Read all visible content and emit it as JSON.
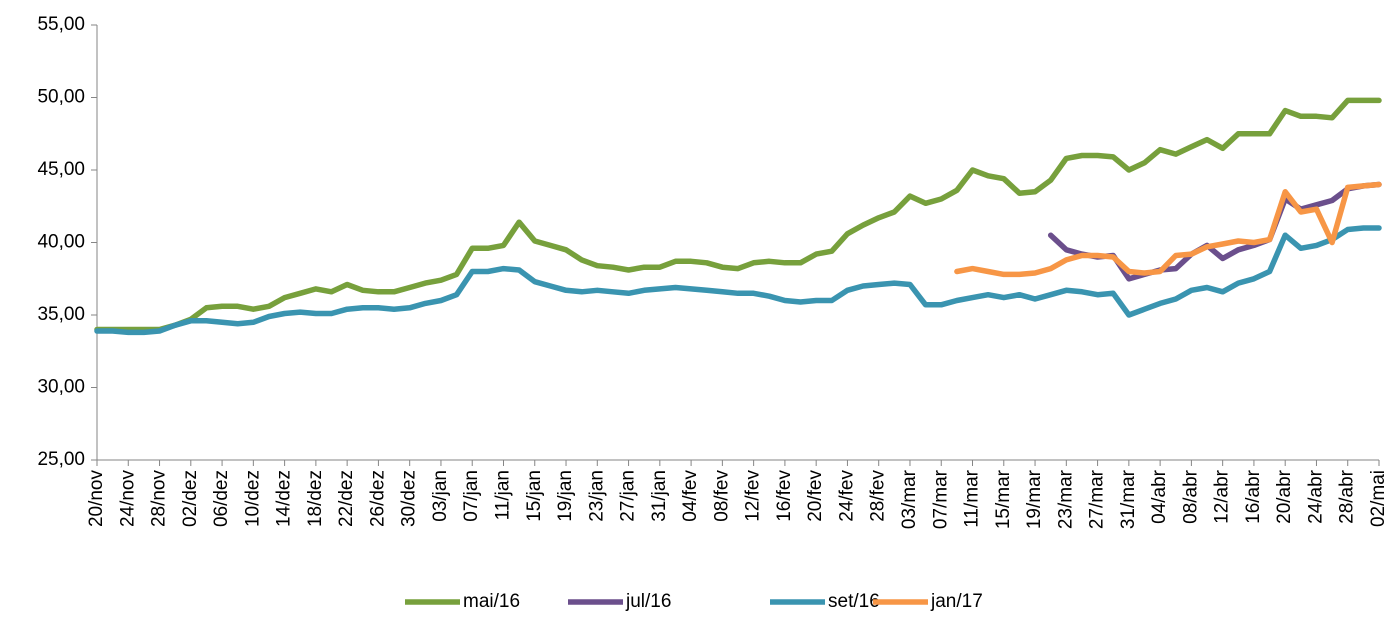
{
  "chart_data": {
    "type": "line",
    "categories": [
      "20/nov",
      null,
      "24/nov",
      null,
      "28/nov",
      null,
      "02/dez",
      null,
      "06/dez",
      null,
      "10/dez",
      null,
      "14/dez",
      null,
      "18/dez",
      null,
      "22/dez",
      null,
      "26/dez",
      null,
      "30/dez",
      null,
      "03/jan",
      null,
      "07/jan",
      null,
      "11/jan",
      null,
      "15/jan",
      null,
      "19/jan",
      null,
      "23/jan",
      null,
      "27/jan",
      null,
      "31/jan",
      null,
      "04/fev",
      null,
      "08/fev",
      null,
      "12/fev",
      null,
      "16/fev",
      null,
      "20/fev",
      null,
      "24/fev",
      null,
      "28/fev",
      null,
      "03/mar",
      null,
      "07/mar",
      null,
      "11/mar",
      null,
      "15/mar",
      null,
      "19/mar",
      null,
      "23/mar",
      null,
      "27/mar",
      null,
      "31/mar",
      null,
      "04/abr",
      null,
      "08/abr",
      null,
      "12/abr",
      null,
      "16/abr",
      null,
      "20/abr",
      null,
      "24/abr",
      null,
      "28/abr",
      null,
      "02/mai"
    ],
    "series": [
      {
        "name": "mai/16",
        "color": "#77a03c",
        "values": [
          34,
          34,
          34,
          34,
          34,
          34.3,
          34.7,
          35.5,
          35.6,
          35.6,
          35.4,
          35.6,
          36.2,
          36.5,
          36.8,
          36.6,
          37.1,
          36.7,
          36.6,
          36.6,
          36.9,
          37.2,
          37.4,
          37.8,
          39.6,
          39.6,
          39.8,
          41.4,
          40.1,
          39.8,
          39.5,
          38.8,
          38.4,
          38.3,
          38.1,
          38.3,
          38.3,
          38.7,
          38.7,
          38.6,
          38.3,
          38.2,
          38.6,
          38.7,
          38.6,
          38.6,
          39.2,
          39.4,
          40.6,
          41.2,
          41.7,
          42.1,
          43.2,
          42.7,
          43.0,
          43.6,
          45.0,
          44.6,
          44.4,
          43.4,
          43.5,
          44.3,
          45.8,
          46.0,
          46.0,
          45.9,
          45.0,
          45.5,
          46.4,
          46.1,
          46.6,
          47.1,
          46.5,
          47.5,
          47.5,
          47.5,
          49.1,
          48.7,
          48.7,
          48.6,
          49.8,
          49.8,
          49.8
        ]
      },
      {
        "name": "jul/16",
        "color": "#6b4f8c",
        "values": [
          null,
          null,
          null,
          null,
          null,
          null,
          null,
          null,
          null,
          null,
          null,
          null,
          null,
          null,
          null,
          null,
          null,
          null,
          null,
          null,
          null,
          null,
          null,
          null,
          null,
          null,
          null,
          null,
          null,
          null,
          null,
          null,
          null,
          null,
          null,
          null,
          null,
          null,
          null,
          null,
          null,
          null,
          null,
          null,
          null,
          null,
          null,
          null,
          null,
          null,
          null,
          null,
          null,
          null,
          null,
          null,
          null,
          null,
          null,
          null,
          null,
          40.5,
          39.5,
          39.2,
          39.0,
          39.1,
          37.5,
          37.8,
          38.1,
          38.2,
          39.2,
          39.8,
          38.9,
          39.5,
          39.8,
          40.2,
          43.0,
          42.3,
          42.6,
          42.9,
          43.7,
          43.9,
          44.0
        ]
      },
      {
        "name": "set/16",
        "color": "#3a94b0",
        "values": [
          33.9,
          33.9,
          33.8,
          33.8,
          33.9,
          34.3,
          34.6,
          34.6,
          34.5,
          34.4,
          34.5,
          34.9,
          35.1,
          35.2,
          35.1,
          35.1,
          35.4,
          35.5,
          35.5,
          35.4,
          35.5,
          35.8,
          36.0,
          36.4,
          38.0,
          38.0,
          38.2,
          38.1,
          37.3,
          37.0,
          36.7,
          36.6,
          36.7,
          36.6,
          36.5,
          36.7,
          36.8,
          36.9,
          36.8,
          36.7,
          36.6,
          36.5,
          36.5,
          36.3,
          36.0,
          35.9,
          36.0,
          36.0,
          36.7,
          37.0,
          37.1,
          37.2,
          37.1,
          35.7,
          35.7,
          36.0,
          36.2,
          36.4,
          36.2,
          36.4,
          36.1,
          36.4,
          36.7,
          36.6,
          36.4,
          36.5,
          35.0,
          35.4,
          35.8,
          36.1,
          36.7,
          36.9,
          36.6,
          37.2,
          37.5,
          38.0,
          40.5,
          39.6,
          39.8,
          40.2,
          40.9,
          41.0,
          41.0
        ]
      },
      {
        "name": "jan/17",
        "color": "#f79646",
        "values": [
          null,
          null,
          null,
          null,
          null,
          null,
          null,
          null,
          null,
          null,
          null,
          null,
          null,
          null,
          null,
          null,
          null,
          null,
          null,
          null,
          null,
          null,
          null,
          null,
          null,
          null,
          null,
          null,
          null,
          null,
          null,
          null,
          null,
          null,
          null,
          null,
          null,
          null,
          null,
          null,
          null,
          null,
          null,
          null,
          null,
          null,
          null,
          null,
          null,
          null,
          null,
          null,
          null,
          null,
          null,
          38.0,
          38.2,
          38.0,
          37.8,
          37.8,
          37.9,
          38.2,
          38.8,
          39.1,
          39.1,
          39.0,
          38.0,
          37.9,
          38.0,
          39.1,
          39.2,
          39.7,
          39.9,
          40.1,
          40.0,
          40.2,
          43.5,
          42.1,
          42.3,
          40.0,
          43.8,
          43.9,
          44.0
        ]
      }
    ],
    "ylim": [
      25,
      55
    ],
    "yticks": [
      {
        "value": 25,
        "label": "25,00"
      },
      {
        "value": 30,
        "label": "30,00"
      },
      {
        "value": 35,
        "label": "35,00"
      },
      {
        "value": 40,
        "label": "40,00"
      },
      {
        "value": 45,
        "label": "45,00"
      },
      {
        "value": 50,
        "label": "50,00"
      },
      {
        "value": 55,
        "label": "55,00"
      }
    ],
    "legend": "bottom"
  }
}
